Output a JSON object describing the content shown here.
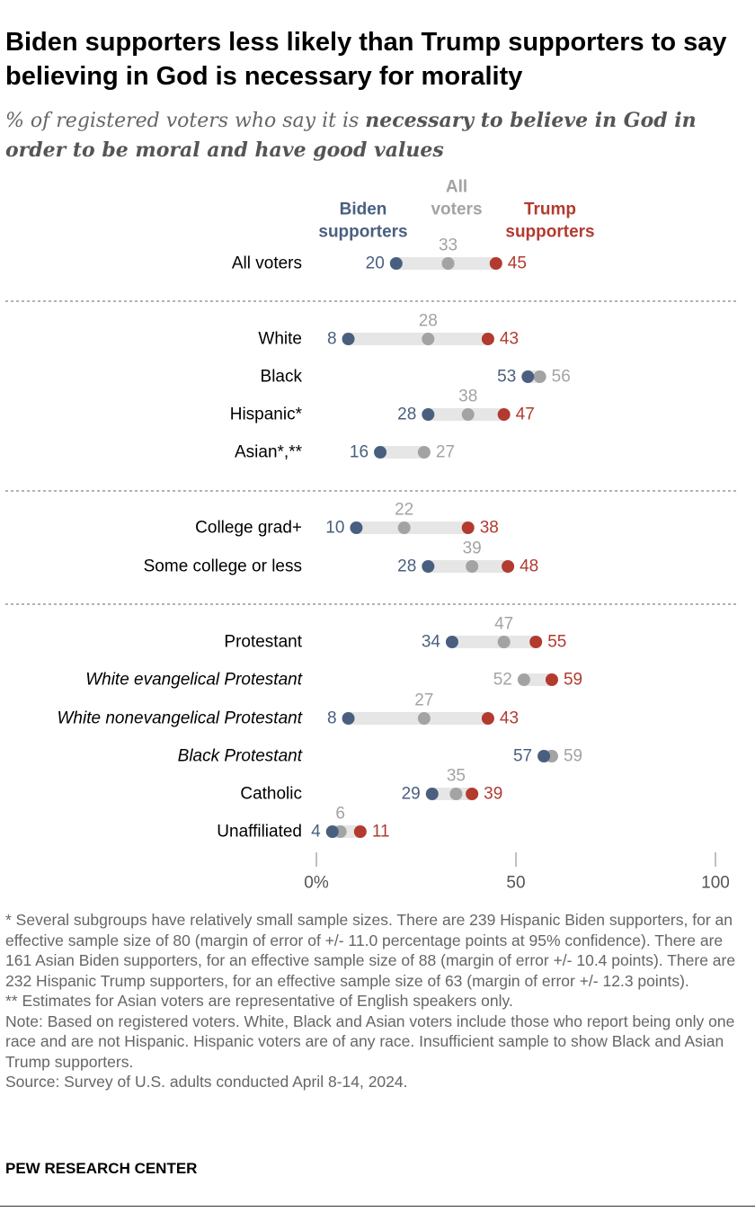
{
  "title": "Biden supporters less likely than Trump supporters to say believing in God is necessary for morality",
  "subtitle_plain": "% of registered voters who say it is",
  "subtitle_bold": "necessary to believe in God in order to be moral and have good values",
  "legend": {
    "biden": "Biden supporters",
    "all": "All voters",
    "trump": "Trump supporters"
  },
  "colors": {
    "biden": "#4a5f7f",
    "all": "#a3a3a3",
    "trump": "#b23a2f",
    "bar": "#e6e6e6"
  },
  "chart_data": {
    "type": "dot-plot",
    "xlim": [
      0,
      100
    ],
    "tick_labels": [
      "0%",
      "50",
      "100"
    ],
    "ticks": [
      0,
      50,
      100
    ],
    "groups": [
      {
        "rows": [
          {
            "label": "All voters",
            "italic": false,
            "biden": 20,
            "all": 33,
            "trump": 45
          }
        ]
      },
      {
        "rows": [
          {
            "label": "White",
            "italic": false,
            "biden": 8,
            "all": 28,
            "trump": 43
          },
          {
            "label": "Black",
            "italic": false,
            "biden": 53,
            "all": 56,
            "trump": null
          },
          {
            "label": "Hispanic*",
            "italic": false,
            "biden": 28,
            "all": 38,
            "trump": 47
          },
          {
            "label": "Asian*,**",
            "italic": false,
            "biden": 16,
            "all": 27,
            "trump": null
          }
        ]
      },
      {
        "rows": [
          {
            "label": "College grad+",
            "italic": false,
            "biden": 10,
            "all": 22,
            "trump": 38
          },
          {
            "label": "Some college or less",
            "italic": false,
            "biden": 28,
            "all": 39,
            "trump": 48
          }
        ]
      },
      {
        "rows": [
          {
            "label": "Protestant",
            "italic": false,
            "biden": 34,
            "all": 47,
            "trump": 55
          },
          {
            "label": "White evangelical Protestant",
            "italic": true,
            "biden": null,
            "all": 52,
            "trump": 59
          },
          {
            "label": "White nonevangelical Protestant",
            "italic": true,
            "biden": 8,
            "all": 27,
            "trump": 43
          },
          {
            "label": "Black Protestant",
            "italic": true,
            "biden": 57,
            "all": 59,
            "trump": null
          },
          {
            "label": "Catholic",
            "italic": false,
            "biden": 29,
            "all": 35,
            "trump": 39
          },
          {
            "label": "Unaffiliated",
            "italic": false,
            "biden": 4,
            "all": 6,
            "trump": 11
          }
        ]
      }
    ]
  },
  "notes": [
    "* Several subgroups have relatively small sample sizes. There are 239 Hispanic Biden supporters, for an effective sample size of 80 (margin of error of +/- 11.0 percentage points at 95% confidence). There are 161 Asian Biden supporters, for an effective sample size of 88 (margin of error +/- 10.4 points). There are 232 Hispanic Trump supporters, for an effective sample size of 63 (margin of error +/- 12.3 points).",
    "** Estimates for Asian voters are representative of English speakers only.",
    "Note: Based on registered voters. White, Black and Asian voters include those who report being only one race and are not Hispanic. Hispanic voters are of any race. Insufficient sample to show Black and Asian Trump supporters.",
    "Source: Survey of U.S. adults conducted April 8-14, 2024."
  ],
  "brand": "PEW RESEARCH CENTER"
}
